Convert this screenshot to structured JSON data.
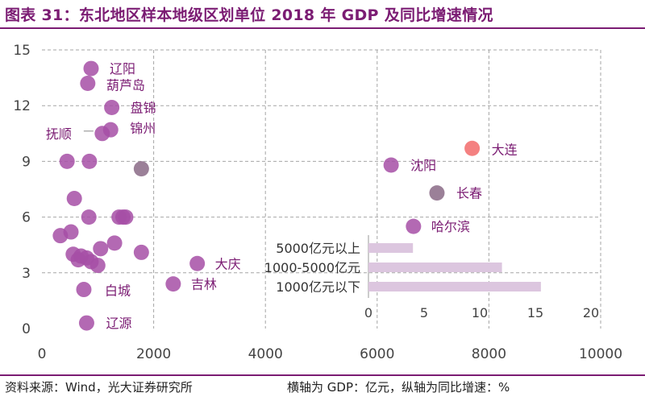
{
  "title": "图表 31：东北地区样本地级区划单位 2018 年 GDP 及同比增速情况",
  "footer": {
    "source": "资料来源：Wind，光大证券研究所",
    "axis_note": "横轴为 GDP：亿元，纵轴为同比增速：%"
  },
  "colors": {
    "accent": "#7b1c73",
    "point": "#a64fa6",
    "highlight_red": "#f26b6b",
    "highlight_gray": "#8a6a86",
    "inset_bar": "#dcc6df",
    "grid": "#a6a6a6",
    "tick_text": "#444444",
    "label_text": "#7b1c73"
  },
  "chart_data": [
    {
      "type": "scatter",
      "title": "",
      "xlabel": "",
      "ylabel": "",
      "xlim": [
        0,
        10000
      ],
      "ylim": [
        0,
        15
      ],
      "xticks": [
        0,
        2000,
        4000,
        6000,
        8000,
        10000
      ],
      "yticks": [
        0,
        3,
        6,
        9,
        12,
        15
      ],
      "grid": true,
      "points": [
        {
          "x": 880,
          "y": 14.0,
          "label": "辽阳"
        },
        {
          "x": 820,
          "y": 13.2,
          "label": "葫芦岛"
        },
        {
          "x": 1250,
          "y": 11.9,
          "label": "盘锦"
        },
        {
          "x": 1230,
          "y": 10.7,
          "label": "锦州"
        },
        {
          "x": 1080,
          "y": 10.5,
          "label": "抚顺"
        },
        {
          "x": 1780,
          "y": 8.6,
          "color": "gray"
        },
        {
          "x": 450,
          "y": 9.0
        },
        {
          "x": 850,
          "y": 9.0
        },
        {
          "x": 580,
          "y": 7.0
        },
        {
          "x": 840,
          "y": 6.0
        },
        {
          "x": 1380,
          "y": 6.0
        },
        {
          "x": 1450,
          "y": 6.0
        },
        {
          "x": 1500,
          "y": 6.0
        },
        {
          "x": 520,
          "y": 5.2
        },
        {
          "x": 330,
          "y": 5.0
        },
        {
          "x": 1300,
          "y": 4.6
        },
        {
          "x": 1050,
          "y": 4.3
        },
        {
          "x": 1780,
          "y": 4.1
        },
        {
          "x": 560,
          "y": 4.0
        },
        {
          "x": 700,
          "y": 3.9
        },
        {
          "x": 800,
          "y": 3.8
        },
        {
          "x": 650,
          "y": 3.7
        },
        {
          "x": 880,
          "y": 3.6
        },
        {
          "x": 1000,
          "y": 3.4
        },
        {
          "x": 2780,
          "y": 3.5,
          "label": "大庆"
        },
        {
          "x": 2350,
          "y": 2.4,
          "label": "吉林"
        },
        {
          "x": 750,
          "y": 2.1,
          "label": "白城"
        },
        {
          "x": 800,
          "y": 0.3,
          "label": "辽源"
        },
        {
          "x": 6250,
          "y": 8.8,
          "label": "沈阳"
        },
        {
          "x": 7700,
          "y": 9.7,
          "label": "大连",
          "color": "red"
        },
        {
          "x": 7070,
          "y": 7.3,
          "label": "长春",
          "color": "gray"
        },
        {
          "x": 6650,
          "y": 5.5,
          "label": "哈尔滨"
        }
      ]
    },
    {
      "type": "bar",
      "orientation": "horizontal",
      "categories": [
        "5000亿元以上",
        "1000-5000亿元",
        "1000亿元以下"
      ],
      "values": [
        4,
        12,
        15.5
      ],
      "xlim": [
        0,
        20
      ],
      "xticks": [
        0,
        5,
        10,
        15,
        20
      ]
    }
  ]
}
